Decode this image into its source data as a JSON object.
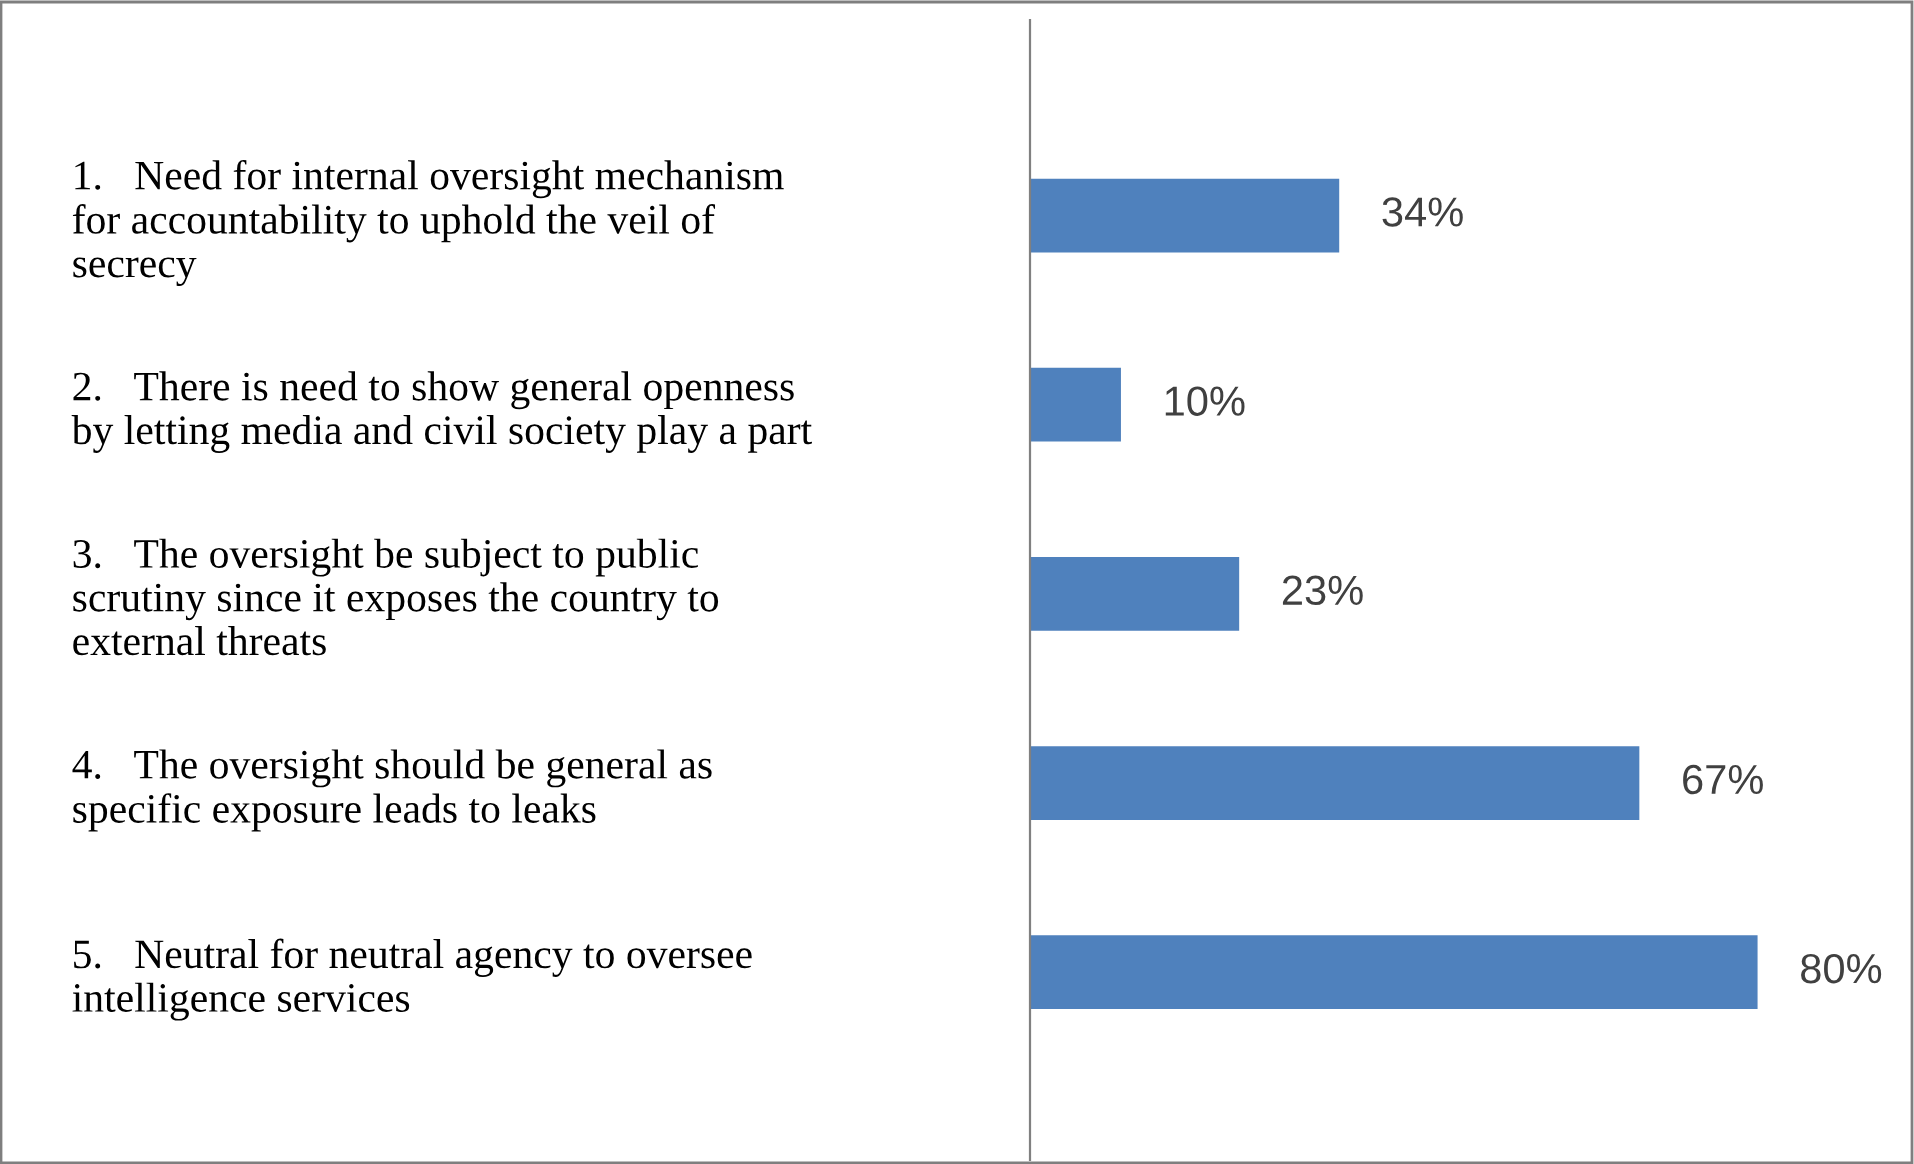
{
  "chart_data": {
    "type": "bar",
    "orientation": "horizontal",
    "categories": [
      "1.   Need for internal oversight mechanism\nfor accountability to uphold the veil of\nsecrecy",
      "2.   There is need to show general openness\nby letting media and civil society play a part",
      "3.   The oversight be subject to public\nscrutiny since it exposes the country to\nexternal threats",
      "4.   The oversight should be general as\nspecific exposure leads to leaks",
      "5.   Neutral for neutral agency to oversee\nintelligence services"
    ],
    "values": [
      34,
      10,
      23,
      67,
      80
    ],
    "value_labels": [
      "34%",
      "10%",
      "23%",
      "67%",
      "80%"
    ],
    "color": "#4f81bd",
    "grid": false,
    "legend": false
  }
}
